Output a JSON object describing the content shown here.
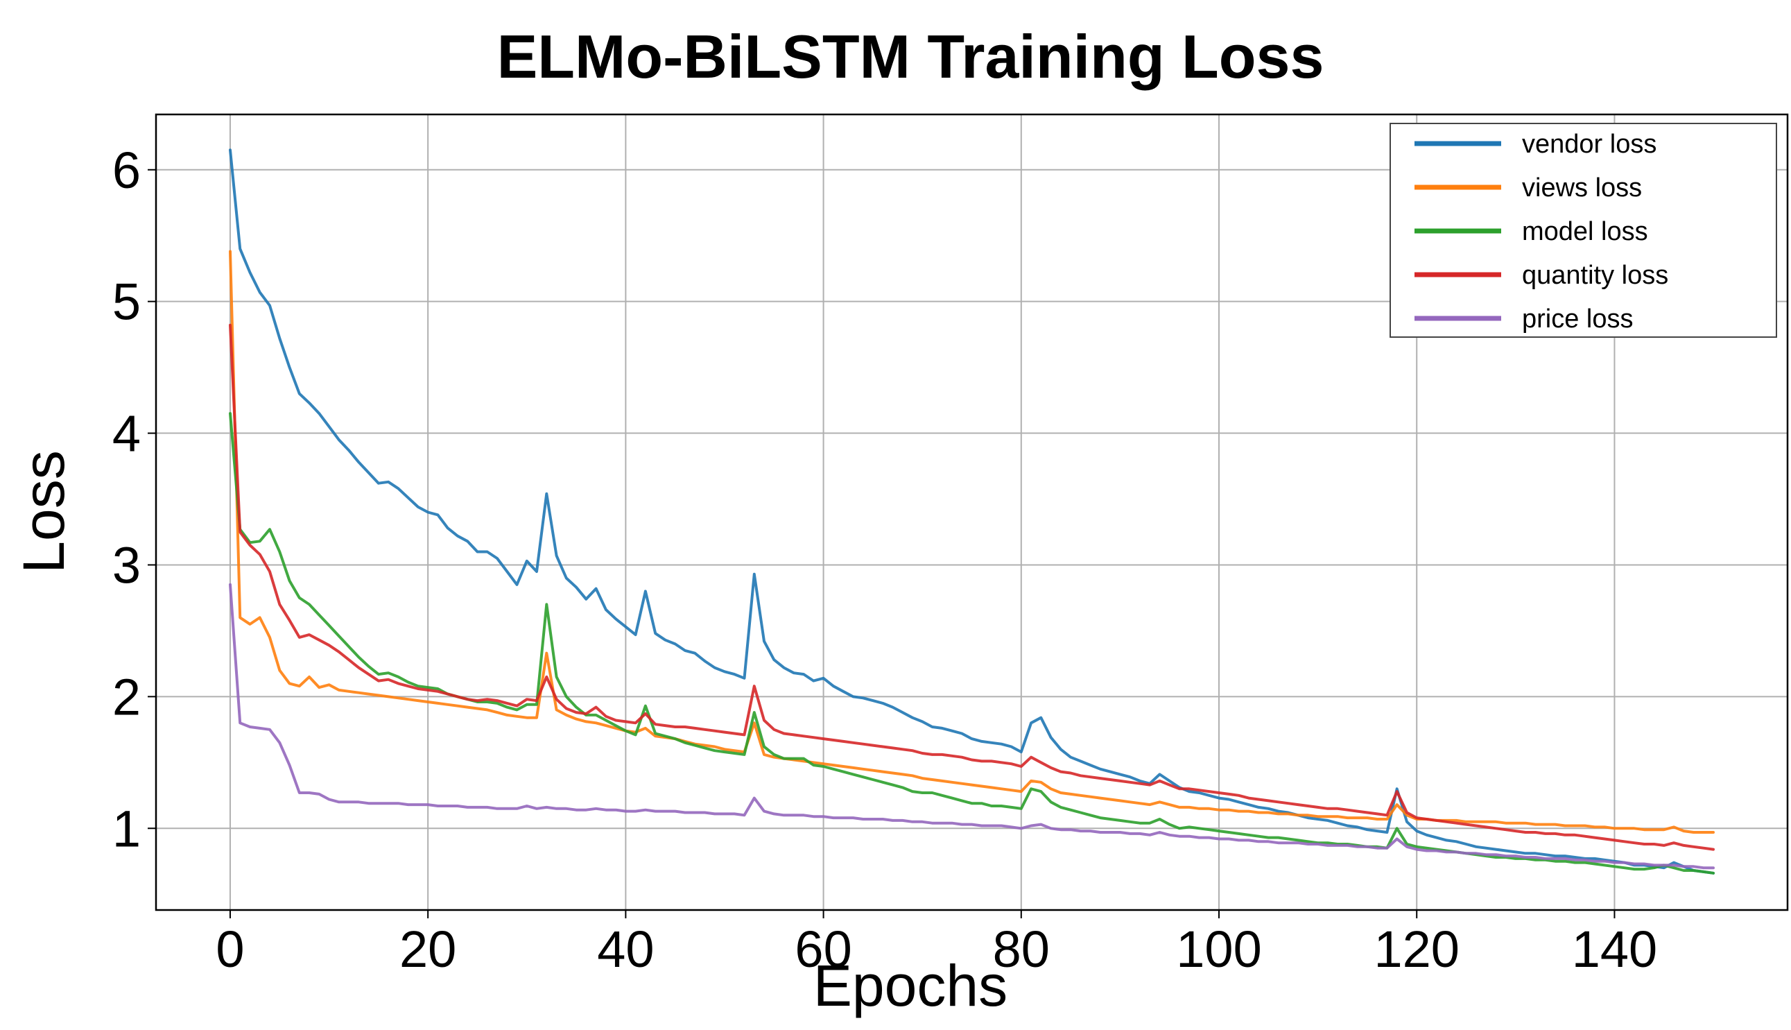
{
  "chart_data": {
    "type": "line",
    "title": "ELMo-BiLSTM Training Loss",
    "xlabel": "Epochs",
    "ylabel": "Loss",
    "xlim": [
      -7.5,
      157.5
    ],
    "ylim": [
      0.38,
      6.42
    ],
    "xticks": [
      0,
      20,
      40,
      60,
      80,
      100,
      120,
      140
    ],
    "yticks": [
      1,
      2,
      3,
      4,
      5,
      6
    ],
    "grid": true,
    "legend_position": "top-right",
    "x": [
      0,
      1,
      2,
      3,
      4,
      5,
      6,
      7,
      8,
      9,
      10,
      11,
      12,
      13,
      14,
      15,
      16,
      17,
      18,
      19,
      20,
      21,
      22,
      23,
      24,
      25,
      26,
      27,
      28,
      29,
      30,
      31,
      32,
      33,
      34,
      35,
      36,
      37,
      38,
      39,
      40,
      41,
      42,
      43,
      44,
      45,
      46,
      47,
      48,
      49,
      50,
      51,
      52,
      53,
      54,
      55,
      56,
      57,
      58,
      59,
      60,
      61,
      62,
      63,
      64,
      65,
      66,
      67,
      68,
      69,
      70,
      71,
      72,
      73,
      74,
      75,
      76,
      77,
      78,
      79,
      80,
      81,
      82,
      83,
      84,
      85,
      86,
      87,
      88,
      89,
      90,
      91,
      92,
      93,
      94,
      95,
      96,
      97,
      98,
      99,
      100,
      101,
      102,
      103,
      104,
      105,
      106,
      107,
      108,
      109,
      110,
      111,
      112,
      113,
      114,
      115,
      116,
      117,
      118,
      119,
      120,
      121,
      122,
      123,
      124,
      125,
      126,
      127,
      128,
      129,
      130,
      131,
      132,
      133,
      134,
      135,
      136,
      137,
      138,
      139,
      140,
      141,
      142,
      143,
      144,
      145,
      146,
      147,
      148,
      149,
      150
    ],
    "series": [
      {
        "name": "vendor loss",
        "color": "#1f77b4",
        "values": [
          6.15,
          5.4,
          5.22,
          5.07,
          4.97,
          4.72,
          4.5,
          4.3,
          4.23,
          4.15,
          4.05,
          3.95,
          3.87,
          3.78,
          3.7,
          3.62,
          3.63,
          3.58,
          3.51,
          3.44,
          3.4,
          3.38,
          3.28,
          3.22,
          3.18,
          3.1,
          3.1,
          3.05,
          2.95,
          2.85,
          3.03,
          2.95,
          3.54,
          3.07,
          2.9,
          2.83,
          2.74,
          2.82,
          2.66,
          2.59,
          2.53,
          2.47,
          2.8,
          2.48,
          2.43,
          2.4,
          2.35,
          2.33,
          2.27,
          2.22,
          2.19,
          2.17,
          2.14,
          2.93,
          2.42,
          2.28,
          2.22,
          2.18,
          2.17,
          2.12,
          2.14,
          2.08,
          2.04,
          2.0,
          1.99,
          1.97,
          1.95,
          1.92,
          1.88,
          1.84,
          1.81,
          1.77,
          1.76,
          1.74,
          1.72,
          1.68,
          1.66,
          1.65,
          1.64,
          1.62,
          1.58,
          1.8,
          1.84,
          1.69,
          1.6,
          1.54,
          1.51,
          1.48,
          1.45,
          1.43,
          1.41,
          1.39,
          1.36,
          1.34,
          1.41,
          1.36,
          1.31,
          1.28,
          1.27,
          1.25,
          1.23,
          1.22,
          1.2,
          1.18,
          1.16,
          1.15,
          1.13,
          1.12,
          1.1,
          1.08,
          1.07,
          1.06,
          1.04,
          1.02,
          1.01,
          0.99,
          0.98,
          0.97,
          1.3,
          1.05,
          0.98,
          0.95,
          0.93,
          0.91,
          0.9,
          0.88,
          0.86,
          0.85,
          0.84,
          0.83,
          0.82,
          0.81,
          0.81,
          0.8,
          0.79,
          0.79,
          0.78,
          0.77,
          0.77,
          0.76,
          0.75,
          0.74,
          0.72,
          0.72,
          0.71,
          0.7,
          0.74,
          0.71,
          0.68,
          0.67,
          0.66
        ]
      },
      {
        "name": "views loss",
        "color": "#ff7f0e",
        "values": [
          5.38,
          2.6,
          2.55,
          2.6,
          2.45,
          2.2,
          2.1,
          2.08,
          2.15,
          2.07,
          2.09,
          2.05,
          2.04,
          2.03,
          2.02,
          2.01,
          2.0,
          1.99,
          1.98,
          1.97,
          1.96,
          1.95,
          1.94,
          1.93,
          1.92,
          1.91,
          1.9,
          1.88,
          1.86,
          1.85,
          1.84,
          1.84,
          2.33,
          1.9,
          1.86,
          1.83,
          1.81,
          1.8,
          1.78,
          1.76,
          1.74,
          1.73,
          1.76,
          1.7,
          1.69,
          1.68,
          1.66,
          1.64,
          1.63,
          1.62,
          1.6,
          1.59,
          1.58,
          1.8,
          1.56,
          1.54,
          1.53,
          1.52,
          1.51,
          1.5,
          1.49,
          1.48,
          1.47,
          1.46,
          1.45,
          1.44,
          1.43,
          1.42,
          1.41,
          1.4,
          1.38,
          1.37,
          1.36,
          1.35,
          1.34,
          1.33,
          1.32,
          1.31,
          1.3,
          1.29,
          1.28,
          1.36,
          1.35,
          1.3,
          1.27,
          1.26,
          1.25,
          1.24,
          1.23,
          1.22,
          1.21,
          1.2,
          1.19,
          1.18,
          1.2,
          1.18,
          1.16,
          1.16,
          1.15,
          1.15,
          1.14,
          1.14,
          1.13,
          1.13,
          1.12,
          1.12,
          1.11,
          1.11,
          1.1,
          1.1,
          1.09,
          1.09,
          1.09,
          1.08,
          1.08,
          1.08,
          1.07,
          1.07,
          1.18,
          1.1,
          1.07,
          1.07,
          1.06,
          1.06,
          1.06,
          1.05,
          1.05,
          1.05,
          1.05,
          1.04,
          1.04,
          1.04,
          1.03,
          1.03,
          1.03,
          1.02,
          1.02,
          1.02,
          1.01,
          1.01,
          1.0,
          1.0,
          1.0,
          0.99,
          0.99,
          0.99,
          1.01,
          0.98,
          0.97,
          0.97,
          0.97
        ]
      },
      {
        "name": "model loss",
        "color": "#2ca02c",
        "values": [
          4.15,
          3.27,
          3.17,
          3.18,
          3.27,
          3.1,
          2.88,
          2.75,
          2.7,
          2.62,
          2.54,
          2.46,
          2.38,
          2.3,
          2.23,
          2.17,
          2.18,
          2.15,
          2.11,
          2.08,
          2.07,
          2.06,
          2.02,
          2.0,
          1.98,
          1.96,
          1.96,
          1.95,
          1.92,
          1.9,
          1.94,
          1.94,
          2.7,
          2.15,
          2.0,
          1.92,
          1.86,
          1.86,
          1.82,
          1.78,
          1.74,
          1.71,
          1.93,
          1.72,
          1.7,
          1.68,
          1.65,
          1.63,
          1.61,
          1.59,
          1.58,
          1.57,
          1.56,
          1.88,
          1.62,
          1.56,
          1.53,
          1.53,
          1.53,
          1.48,
          1.47,
          1.45,
          1.43,
          1.41,
          1.39,
          1.37,
          1.35,
          1.33,
          1.31,
          1.28,
          1.27,
          1.27,
          1.25,
          1.23,
          1.21,
          1.19,
          1.19,
          1.17,
          1.17,
          1.16,
          1.15,
          1.3,
          1.28,
          1.2,
          1.16,
          1.14,
          1.12,
          1.1,
          1.08,
          1.07,
          1.06,
          1.05,
          1.04,
          1.04,
          1.07,
          1.03,
          1.0,
          1.01,
          1.0,
          0.99,
          0.98,
          0.97,
          0.96,
          0.95,
          0.94,
          0.93,
          0.93,
          0.92,
          0.91,
          0.9,
          0.89,
          0.89,
          0.88,
          0.88,
          0.87,
          0.86,
          0.86,
          0.85,
          1.0,
          0.88,
          0.86,
          0.85,
          0.84,
          0.83,
          0.82,
          0.81,
          0.8,
          0.79,
          0.78,
          0.78,
          0.77,
          0.77,
          0.76,
          0.76,
          0.75,
          0.75,
          0.74,
          0.74,
          0.73,
          0.72,
          0.71,
          0.7,
          0.69,
          0.69,
          0.7,
          0.72,
          0.7,
          0.68,
          0.68,
          0.67,
          0.66
        ]
      },
      {
        "name": "quantity loss",
        "color": "#d62728",
        "values": [
          4.82,
          3.25,
          3.15,
          3.08,
          2.95,
          2.7,
          2.58,
          2.45,
          2.47,
          2.43,
          2.39,
          2.34,
          2.28,
          2.22,
          2.17,
          2.12,
          2.13,
          2.1,
          2.08,
          2.06,
          2.05,
          2.04,
          2.02,
          2.0,
          1.98,
          1.97,
          1.98,
          1.97,
          1.95,
          1.93,
          1.98,
          1.97,
          2.15,
          1.98,
          1.91,
          1.88,
          1.87,
          1.92,
          1.85,
          1.82,
          1.81,
          1.8,
          1.87,
          1.79,
          1.78,
          1.77,
          1.77,
          1.76,
          1.75,
          1.74,
          1.73,
          1.72,
          1.71,
          2.08,
          1.82,
          1.75,
          1.72,
          1.71,
          1.7,
          1.69,
          1.68,
          1.67,
          1.66,
          1.65,
          1.64,
          1.63,
          1.62,
          1.61,
          1.6,
          1.59,
          1.57,
          1.56,
          1.56,
          1.55,
          1.54,
          1.52,
          1.51,
          1.51,
          1.5,
          1.49,
          1.47,
          1.54,
          1.5,
          1.46,
          1.43,
          1.42,
          1.4,
          1.39,
          1.38,
          1.37,
          1.36,
          1.35,
          1.34,
          1.33,
          1.36,
          1.33,
          1.3,
          1.3,
          1.29,
          1.28,
          1.27,
          1.26,
          1.25,
          1.23,
          1.22,
          1.21,
          1.2,
          1.19,
          1.18,
          1.17,
          1.16,
          1.15,
          1.15,
          1.14,
          1.13,
          1.12,
          1.11,
          1.1,
          1.28,
          1.12,
          1.08,
          1.07,
          1.06,
          1.05,
          1.04,
          1.03,
          1.02,
          1.01,
          1.0,
          0.99,
          0.98,
          0.97,
          0.97,
          0.96,
          0.96,
          0.95,
          0.95,
          0.94,
          0.93,
          0.92,
          0.91,
          0.9,
          0.89,
          0.88,
          0.88,
          0.87,
          0.89,
          0.87,
          0.86,
          0.85,
          0.84
        ]
      },
      {
        "name": "price loss",
        "color": "#9467bd",
        "values": [
          2.85,
          1.8,
          1.77,
          1.76,
          1.75,
          1.65,
          1.48,
          1.27,
          1.27,
          1.26,
          1.22,
          1.2,
          1.2,
          1.2,
          1.19,
          1.19,
          1.19,
          1.19,
          1.18,
          1.18,
          1.18,
          1.17,
          1.17,
          1.17,
          1.16,
          1.16,
          1.16,
          1.15,
          1.15,
          1.15,
          1.17,
          1.15,
          1.16,
          1.15,
          1.15,
          1.14,
          1.14,
          1.15,
          1.14,
          1.14,
          1.13,
          1.13,
          1.14,
          1.13,
          1.13,
          1.13,
          1.12,
          1.12,
          1.12,
          1.11,
          1.11,
          1.11,
          1.1,
          1.23,
          1.13,
          1.11,
          1.1,
          1.1,
          1.1,
          1.09,
          1.09,
          1.08,
          1.08,
          1.08,
          1.07,
          1.07,
          1.07,
          1.06,
          1.06,
          1.05,
          1.05,
          1.04,
          1.04,
          1.04,
          1.03,
          1.03,
          1.02,
          1.02,
          1.02,
          1.01,
          1.0,
          1.02,
          1.03,
          1.0,
          0.99,
          0.99,
          0.98,
          0.98,
          0.97,
          0.97,
          0.97,
          0.96,
          0.96,
          0.95,
          0.97,
          0.95,
          0.94,
          0.94,
          0.93,
          0.93,
          0.92,
          0.92,
          0.91,
          0.91,
          0.9,
          0.9,
          0.89,
          0.89,
          0.89,
          0.88,
          0.88,
          0.87,
          0.87,
          0.87,
          0.86,
          0.86,
          0.85,
          0.85,
          0.92,
          0.86,
          0.84,
          0.83,
          0.83,
          0.82,
          0.82,
          0.81,
          0.81,
          0.8,
          0.8,
          0.79,
          0.79,
          0.78,
          0.78,
          0.77,
          0.77,
          0.77,
          0.76,
          0.76,
          0.75,
          0.75,
          0.74,
          0.74,
          0.73,
          0.73,
          0.72,
          0.72,
          0.72,
          0.71,
          0.71,
          0.7,
          0.7
        ]
      }
    ]
  }
}
